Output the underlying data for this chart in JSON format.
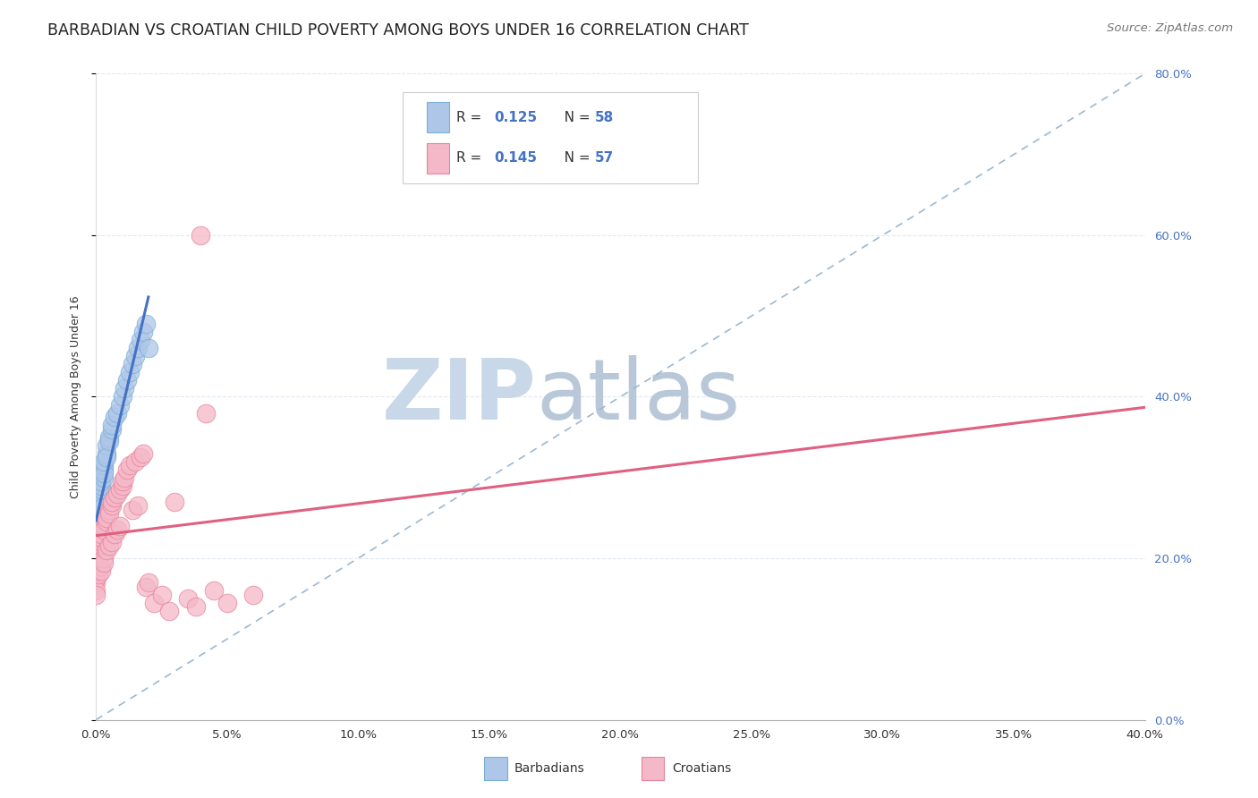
{
  "title": "BARBADIAN VS CROATIAN CHILD POVERTY AMONG BOYS UNDER 16 CORRELATION CHART",
  "source": "Source: ZipAtlas.com",
  "ylabel": "Child Poverty Among Boys Under 16",
  "legend_r1": "R = 0.125",
  "legend_n1": "N = 58",
  "legend_r2": "R = 0.145",
  "legend_n2": "N = 57",
  "barbadian_color": "#aec6e8",
  "barbadian_edge": "#7aafd4",
  "croatian_color": "#f4b8c8",
  "croatian_edge": "#e8839a",
  "trend_blue_color": "#4472C4",
  "trend_pink_color": "#e06080",
  "trend_dash_color": "#9bb8d4",
  "watermark_zip_color": "#c8d8e8",
  "watermark_atlas_color": "#b8c8d8",
  "background_color": "#ffffff",
  "grid_color": "#e0e8f0",
  "title_fontsize": 12.5,
  "source_fontsize": 9.5,
  "axis_label_fontsize": 9,
  "tick_fontsize": 9.5,
  "legend_fontsize": 11,
  "barbadians_x": [
    0.0,
    0.0,
    0.0,
    0.0,
    0.0,
    0.0,
    0.0,
    0.0,
    0.0,
    0.0,
    0.0,
    0.0,
    0.0,
    0.001,
    0.001,
    0.001,
    0.001,
    0.001,
    0.001,
    0.001,
    0.001,
    0.001,
    0.001,
    0.001,
    0.002,
    0.002,
    0.002,
    0.002,
    0.002,
    0.002,
    0.002,
    0.002,
    0.003,
    0.003,
    0.003,
    0.003,
    0.003,
    0.004,
    0.004,
    0.004,
    0.005,
    0.005,
    0.006,
    0.006,
    0.007,
    0.008,
    0.009,
    0.01,
    0.011,
    0.012,
    0.013,
    0.014,
    0.015,
    0.016,
    0.017,
    0.018,
    0.019,
    0.02
  ],
  "barbadians_y": [
    0.225,
    0.23,
    0.235,
    0.24,
    0.22,
    0.215,
    0.228,
    0.232,
    0.218,
    0.245,
    0.238,
    0.222,
    0.21,
    0.25,
    0.255,
    0.26,
    0.245,
    0.24,
    0.235,
    0.265,
    0.27,
    0.248,
    0.242,
    0.258,
    0.275,
    0.28,
    0.268,
    0.272,
    0.285,
    0.262,
    0.29,
    0.295,
    0.3,
    0.31,
    0.315,
    0.305,
    0.32,
    0.33,
    0.34,
    0.325,
    0.35,
    0.345,
    0.36,
    0.365,
    0.375,
    0.38,
    0.39,
    0.4,
    0.41,
    0.42,
    0.43,
    0.44,
    0.45,
    0.46,
    0.47,
    0.48,
    0.49,
    0.46
  ],
  "croatians_x": [
    0.0,
    0.0,
    0.0,
    0.0,
    0.0,
    0.0,
    0.001,
    0.001,
    0.001,
    0.001,
    0.001,
    0.002,
    0.002,
    0.002,
    0.002,
    0.003,
    0.003,
    0.003,
    0.003,
    0.004,
    0.004,
    0.004,
    0.005,
    0.005,
    0.005,
    0.006,
    0.006,
    0.006,
    0.007,
    0.007,
    0.008,
    0.008,
    0.009,
    0.009,
    0.01,
    0.01,
    0.011,
    0.012,
    0.013,
    0.014,
    0.015,
    0.016,
    0.017,
    0.018,
    0.019,
    0.02,
    0.022,
    0.025,
    0.028,
    0.03,
    0.035,
    0.038,
    0.04,
    0.042,
    0.045,
    0.05,
    0.06
  ],
  "croatians_y": [
    0.215,
    0.17,
    0.175,
    0.185,
    0.16,
    0.155,
    0.22,
    0.21,
    0.2,
    0.195,
    0.18,
    0.225,
    0.23,
    0.19,
    0.185,
    0.24,
    0.235,
    0.2,
    0.195,
    0.245,
    0.25,
    0.21,
    0.26,
    0.255,
    0.215,
    0.265,
    0.27,
    0.22,
    0.275,
    0.23,
    0.28,
    0.235,
    0.285,
    0.24,
    0.29,
    0.295,
    0.3,
    0.31,
    0.315,
    0.26,
    0.32,
    0.265,
    0.325,
    0.33,
    0.165,
    0.17,
    0.145,
    0.155,
    0.135,
    0.27,
    0.15,
    0.14,
    0.6,
    0.38,
    0.16,
    0.145,
    0.155
  ],
  "xlim": [
    0.0,
    0.4
  ],
  "ylim": [
    0.0,
    0.8
  ],
  "x_ticks": [
    0.0,
    0.05,
    0.1,
    0.15,
    0.2,
    0.25,
    0.3,
    0.35,
    0.4
  ],
  "y_ticks": [
    0.0,
    0.2,
    0.4,
    0.6,
    0.8
  ],
  "right_y_tick_labels": [
    "0.0%",
    "20.0%",
    "40.0%",
    "60.0%",
    "80.0%"
  ],
  "bottom_x_tick_labels": [
    "0.0%",
    "5.0%",
    "10.0%",
    "15.0%",
    "20.0%",
    "25.0%",
    "30.0%",
    "35.0%",
    "40.0%"
  ]
}
